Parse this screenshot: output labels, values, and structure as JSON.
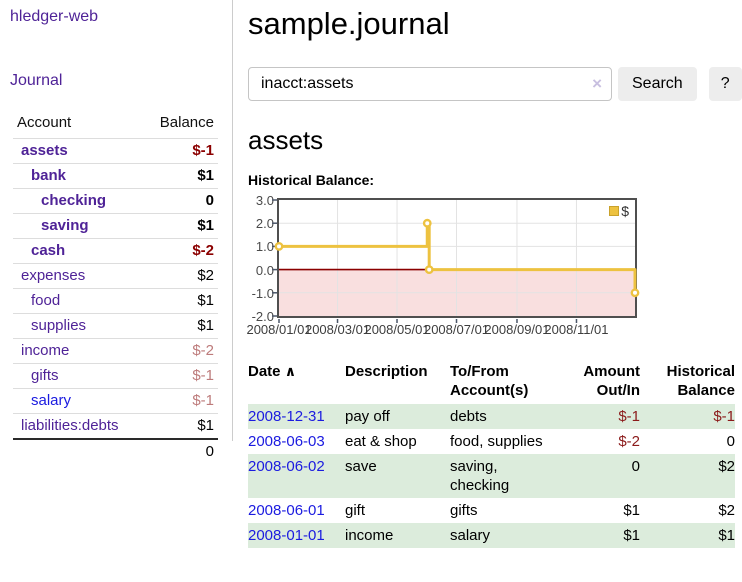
{
  "colors": {
    "link_purple": "#4f2397",
    "link_blue": "#1b1be0",
    "negative_dark": "#8b0000",
    "negative_table": "#8b1a1a",
    "negative_muted": "#bd7b7b",
    "row_stripe_green": "#dcecdc",
    "chart_line_gold": "#edc240",
    "chart_negative_fill": "#f9dfdf",
    "chart_zero_line": "#8b0000"
  },
  "icons": {
    "clear": "×",
    "sort_ascending": "∧"
  },
  "sidebar": {
    "app_title": "hledger-web",
    "journal_link": "Journal",
    "accounts": {
      "headers": [
        "Account",
        "Balance"
      ],
      "rows": [
        {
          "name": "assets",
          "balance": "$-1",
          "depth": 1,
          "in_current_account": true,
          "negative": true
        },
        {
          "name": "bank",
          "balance": "$1",
          "depth": 2,
          "in_current_account": true,
          "negative": false
        },
        {
          "name": "checking",
          "balance": "0",
          "depth": 3,
          "in_current_account": true,
          "negative": false
        },
        {
          "name": "saving",
          "balance": "$1",
          "depth": 3,
          "in_current_account": true,
          "negative": false
        },
        {
          "name": "cash",
          "balance": "$-2",
          "depth": 2,
          "in_current_account": true,
          "negative": true
        },
        {
          "name": "expenses",
          "balance": "$2",
          "depth": 1,
          "in_current_account": false,
          "negative": false
        },
        {
          "name": "food",
          "balance": "$1",
          "depth": 2,
          "in_current_account": false,
          "negative": false
        },
        {
          "name": "supplies",
          "balance": "$1",
          "depth": 2,
          "in_current_account": false,
          "negative": false
        },
        {
          "name": "income",
          "balance": "$-2",
          "depth": 1,
          "in_current_account": false,
          "negative": true
        },
        {
          "name": "gifts",
          "balance": "$-1",
          "depth": 2,
          "in_current_account": false,
          "negative": true
        },
        {
          "name": "salary",
          "balance": "$-1",
          "depth": 2,
          "in_current_account": false,
          "negative": true,
          "unvisited": true
        },
        {
          "name": "liabilities:debts",
          "balance": "$1",
          "depth": 1,
          "in_current_account": false,
          "negative": false
        }
      ],
      "total": "0"
    }
  },
  "main": {
    "title": "sample.journal",
    "search": {
      "value": "inacct:assets",
      "button_label": "Search",
      "help_label": "?"
    },
    "account_heading": "assets"
  },
  "chart_data": {
    "type": "line",
    "style": "step",
    "title": "Historical Balance:",
    "series": [
      {
        "name": "$",
        "color": "#edc240",
        "points": [
          [
            "2008-01-01",
            1
          ],
          [
            "2008-06-01",
            2
          ],
          [
            "2008-06-03",
            0
          ],
          [
            "2008-12-31",
            -1
          ]
        ]
      }
    ],
    "xlim": [
      "2008-01-01",
      "2008-12-31"
    ],
    "ylim": [
      -2,
      3
    ],
    "x_ticks": [
      "2008/01/01",
      "2008/03/01",
      "2008/05/01",
      "2008/07/01",
      "2008/09/01",
      "2008/11/01"
    ],
    "y_ticks": [
      "3.0",
      "2.0",
      "1.0",
      "0.0",
      "-1.0",
      "-2.0"
    ],
    "grid": true,
    "negative_region": true,
    "legend": {
      "position": "top-right",
      "label": "$"
    }
  },
  "transactions": {
    "headers": [
      "Date",
      "Description",
      "To/From Account(s)",
      "Amount Out/In",
      "Historical Balance"
    ],
    "rows": [
      {
        "date": "2008-12-31",
        "description": "pay off",
        "accounts": "debts",
        "amount": "$-1",
        "amount_negative": true,
        "balance": "$-1",
        "balance_negative": true
      },
      {
        "date": "2008-06-03",
        "description": "eat & shop",
        "accounts": "food, supplies",
        "amount": "$-2",
        "amount_negative": true,
        "balance": "0",
        "balance_negative": false
      },
      {
        "date": "2008-06-02",
        "description": "save",
        "accounts": "saving, checking",
        "amount": "0",
        "amount_negative": false,
        "balance": "$2",
        "balance_negative": false
      },
      {
        "date": "2008-06-01",
        "description": "gift",
        "accounts": "gifts",
        "amount": "$1",
        "amount_negative": false,
        "balance": "$2",
        "balance_negative": false
      },
      {
        "date": "2008-01-01",
        "description": "income",
        "accounts": "salary",
        "amount": "$1",
        "amount_negative": false,
        "balance": "$1",
        "balance_negative": false
      }
    ]
  }
}
